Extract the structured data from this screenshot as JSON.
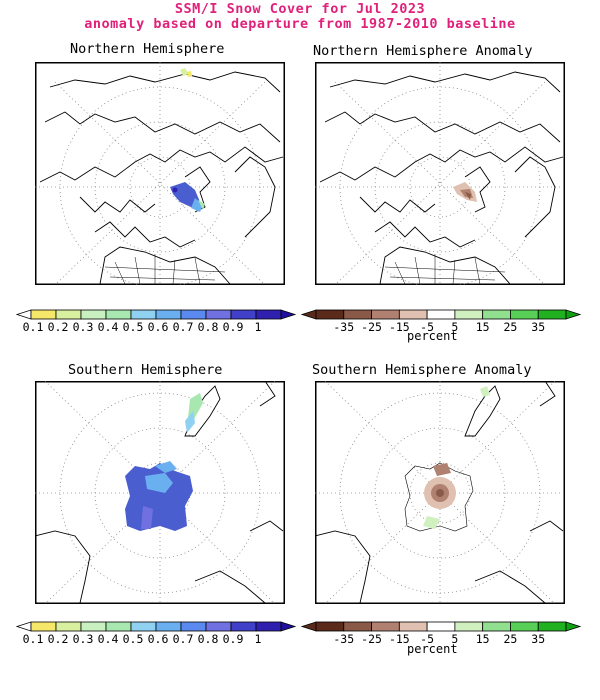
{
  "header": {
    "line1": "SSM/I Snow Cover for Jul 2023",
    "line2": "anomaly based on departure from 1987-2010 baseline"
  },
  "panels": {
    "nh": {
      "title": "Northern Hemisphere"
    },
    "nh_anom": {
      "title": "Northern Hemisphere Anomaly"
    },
    "sh": {
      "title": "Southern Hemisphere"
    },
    "sh_anom": {
      "title": "Southern Hemisphere Anomaly"
    }
  },
  "colorbars": {
    "cover": {
      "labels": [
        "0.1",
        "0.2",
        "0.3",
        "0.4",
        "0.5",
        "0.6",
        "0.7",
        "0.8",
        "0.9",
        "1"
      ],
      "colors": [
        "#f5e76a",
        "#d8f0a0",
        "#c8f0c0",
        "#a8e8b0",
        "#90d0f0",
        "#6ab0f0",
        "#5a8af0",
        "#7070e0",
        "#4040c8",
        "#3020b0"
      ]
    },
    "anomaly": {
      "labels": [
        "-35",
        "-25",
        "-15",
        "-5",
        "5",
        "15",
        "25",
        "35"
      ],
      "colors": [
        "#5a2a1a",
        "#8a5a48",
        "#b08070",
        "#e0c0b0",
        "#ffffff",
        "#d0f0c0",
        "#90e090",
        "#58d058",
        "#20b020"
      ],
      "unit": "percent"
    }
  }
}
